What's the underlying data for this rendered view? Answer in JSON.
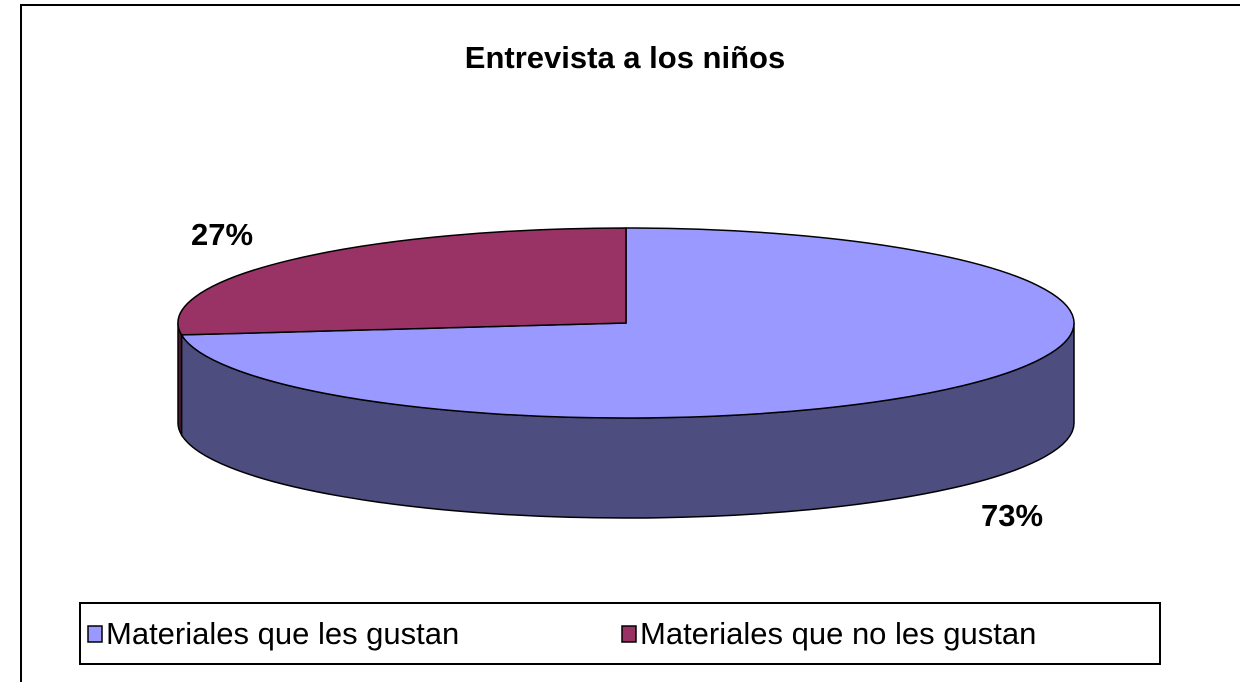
{
  "chart_data": {
    "type": "pie3d",
    "title": "Entrevista a los niños",
    "categories": [
      "Materiales que les gustan",
      "Materiales que no les gustan"
    ],
    "values": [
      73,
      27
    ],
    "value_labels": [
      "73%",
      "27%"
    ],
    "colors": [
      "#9999ff",
      "#993366"
    ],
    "legend": "bottom"
  }
}
